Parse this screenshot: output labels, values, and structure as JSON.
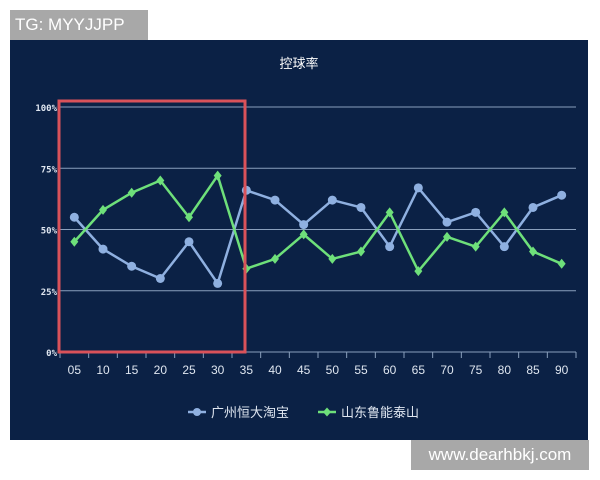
{
  "watermarks": {
    "top_left": "TG: MYYJJPP",
    "bottom_right": "www.dearhbkj.com"
  },
  "colors": {
    "background": "#0b2145",
    "series1": "#8fb0e0",
    "series2": "#6ee07a",
    "highlight_box": "#d9525a",
    "grid": "#8aa0bd",
    "text": "#dfe6f0"
  },
  "chart_data": {
    "type": "line",
    "title": "控球率",
    "xlabel": "",
    "ylabel": "",
    "categories": [
      "05",
      "10",
      "15",
      "20",
      "25",
      "30",
      "35",
      "40",
      "45",
      "50",
      "55",
      "60",
      "65",
      "70",
      "75",
      "80",
      "85",
      "90"
    ],
    "yticks": [
      "0%",
      "25%",
      "50%",
      "75%",
      "100%"
    ],
    "ylim": [
      0,
      100
    ],
    "grid": true,
    "legend": "bottom-center",
    "series": [
      {
        "name": "广州恒大淘宝",
        "marker": "circle",
        "values": [
          55,
          42,
          35,
          30,
          45,
          28,
          66,
          62,
          52,
          62,
          59,
          43,
          67,
          53,
          57,
          43,
          59,
          64
        ]
      },
      {
        "name": "山东鲁能泰山",
        "marker": "diamond",
        "values": [
          45,
          58,
          65,
          70,
          55,
          72,
          34,
          38,
          48,
          38,
          41,
          57,
          33,
          47,
          43,
          57,
          41,
          36
        ]
      }
    ],
    "highlight": {
      "from": "05",
      "to": "30",
      "shape": "red rectangle"
    }
  }
}
